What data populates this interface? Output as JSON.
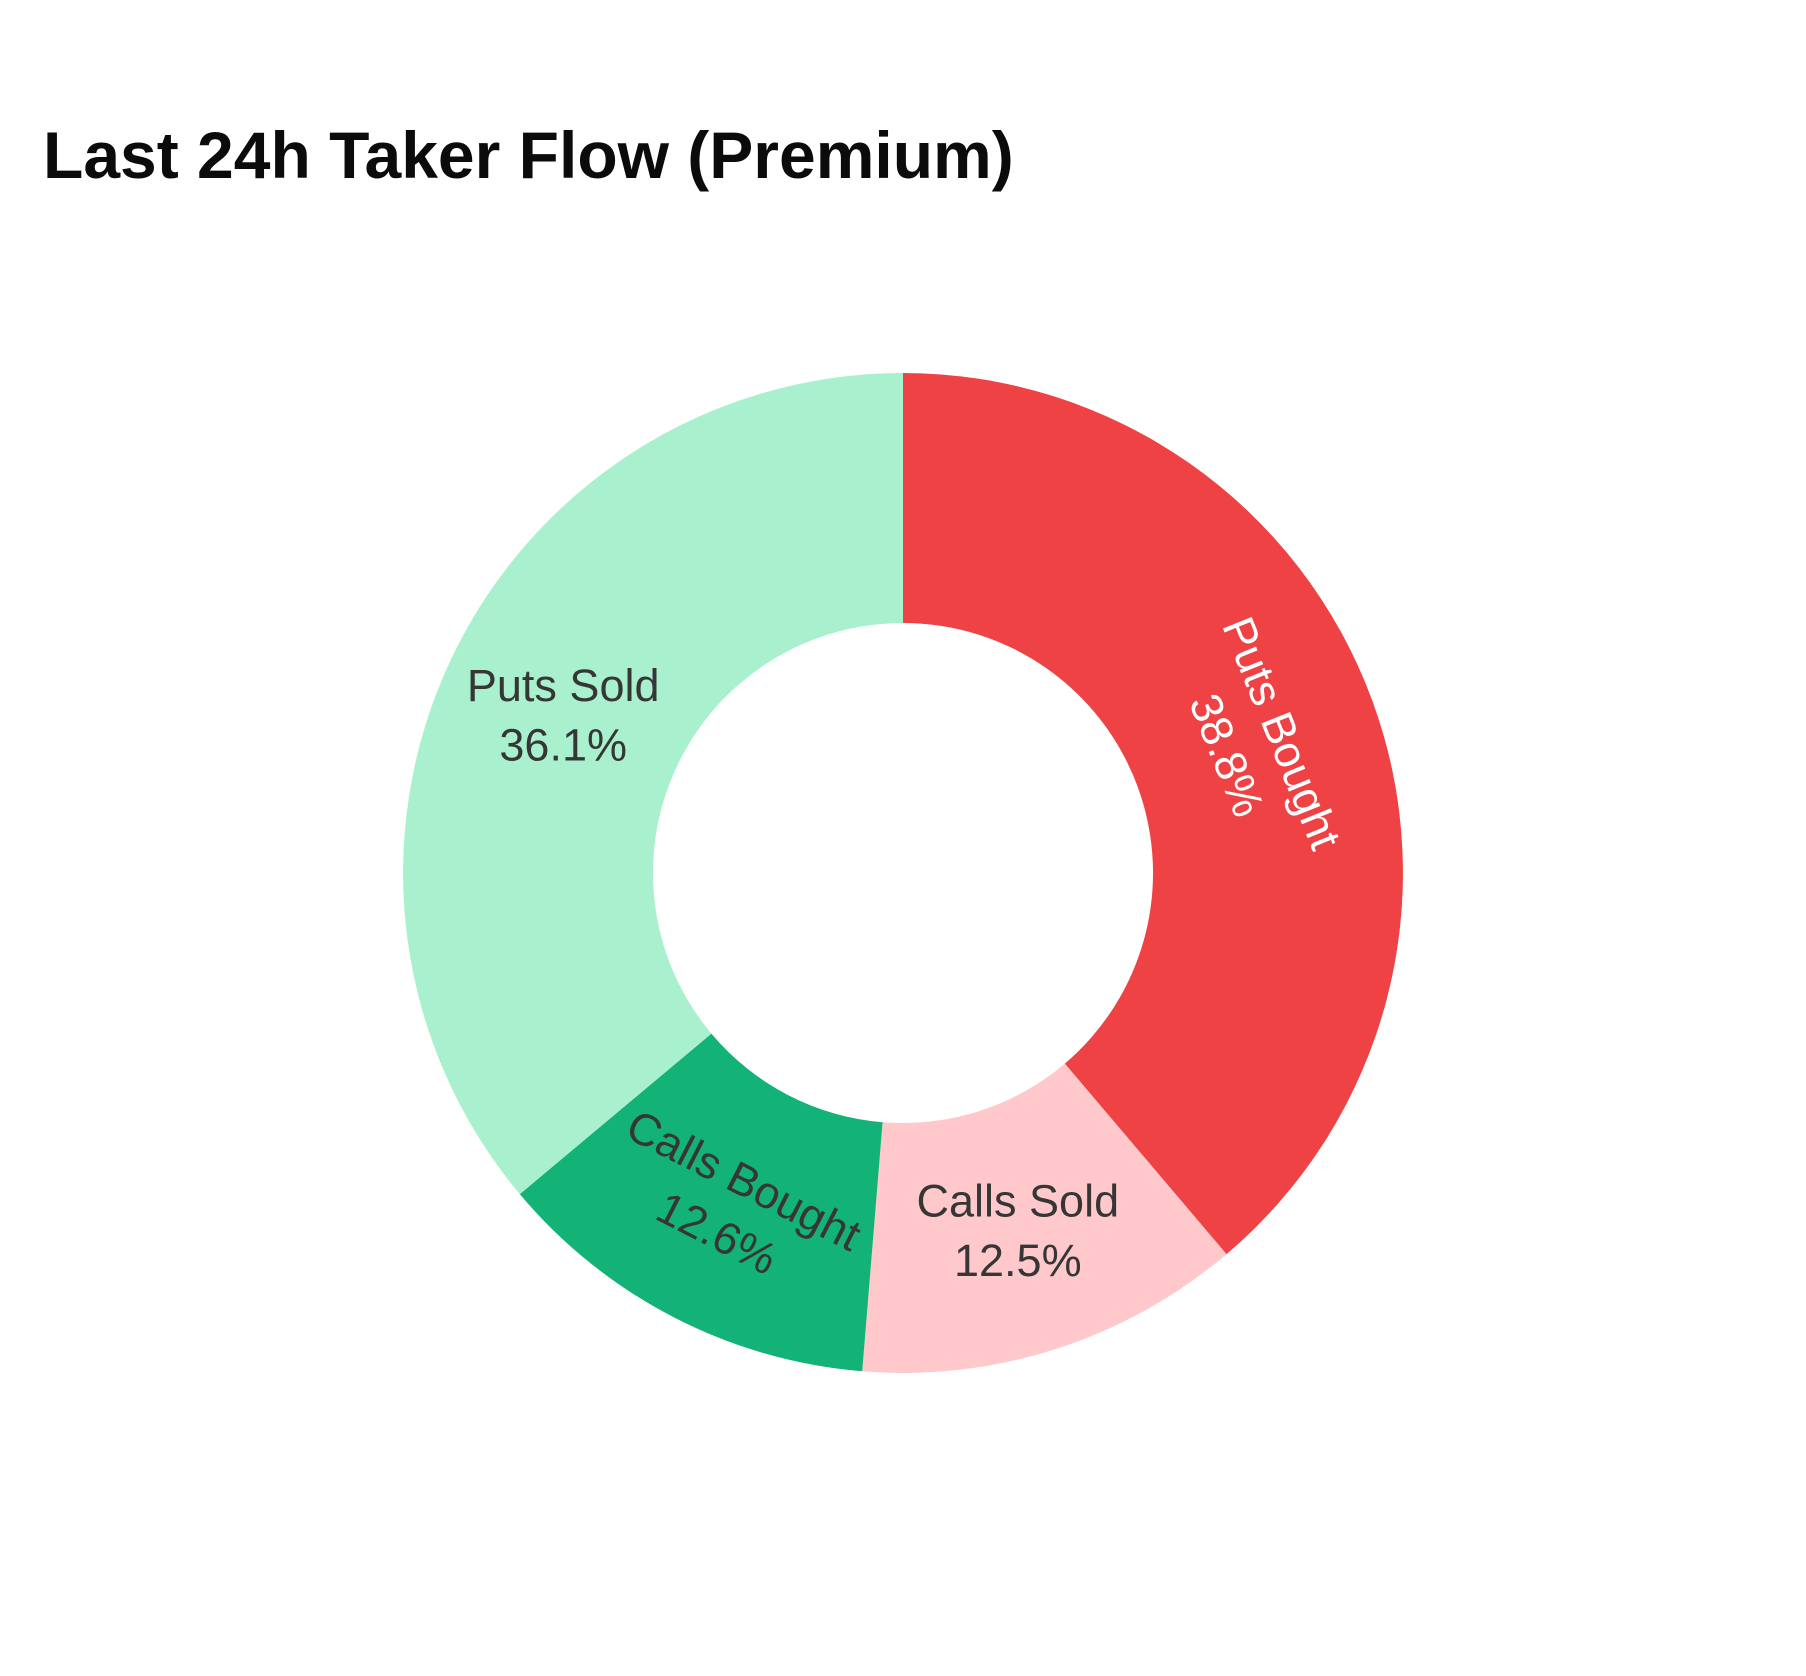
{
  "title": "Last 24h Taker Flow (Premium)",
  "colors": {
    "background": "#ffffff",
    "title_text": "#0b0b0b",
    "label_dark": "#363636",
    "label_light": "#ffffff"
  },
  "chart_data": {
    "type": "pie",
    "title": "Last 24h Taker Flow (Premium)",
    "donut_hole_ratio": 0.5,
    "start_angle_deg": 0,
    "direction": "clockwise",
    "legend": "none",
    "categories": [
      "Puts Bought",
      "Calls Sold",
      "Calls Bought",
      "Puts Sold"
    ],
    "values": [
      38.8,
      12.5,
      12.6,
      36.1
    ],
    "slices": [
      {
        "label": "Puts Bought",
        "value_pct": 38.8,
        "color": "#ee4245",
        "text_color": "#ffffff",
        "label_rotation_deg": 68
      },
      {
        "label": "Calls Sold",
        "value_pct": 12.5,
        "color": "#ffc8cb",
        "text_color": "#363636",
        "label_rotation_deg": 0
      },
      {
        "label": "Calls Bought",
        "value_pct": 12.6,
        "color": "#13b377",
        "text_color": "#363636",
        "label_rotation_deg": 27
      },
      {
        "label": "Puts Sold",
        "value_pct": 36.1,
        "color": "#a9f1ce",
        "text_color": "#363636",
        "label_rotation_deg": 0
      }
    ]
  }
}
